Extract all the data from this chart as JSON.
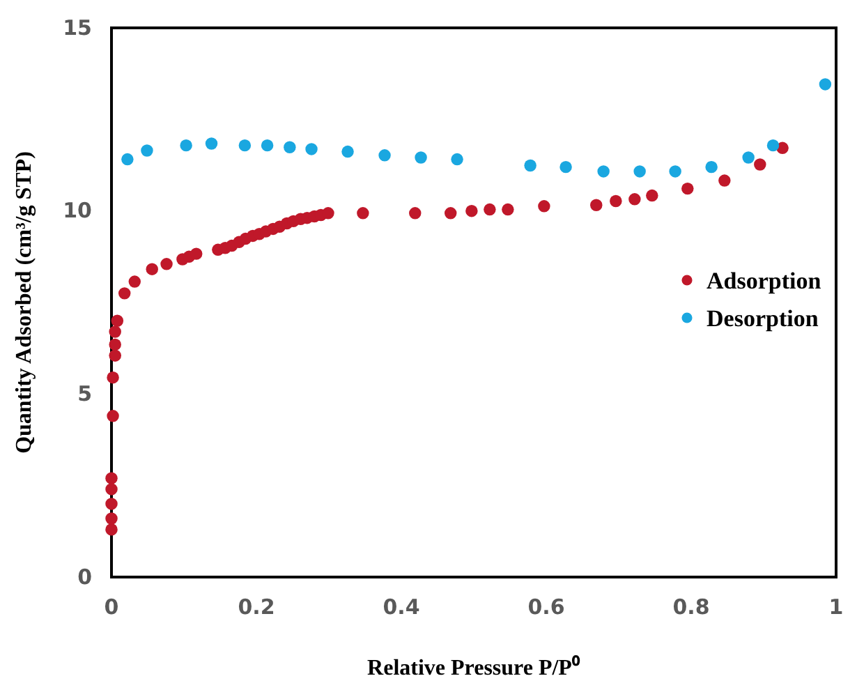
{
  "chart_data": {
    "type": "scatter",
    "xlabel": "Relative Pressure P/P⁰",
    "ylabel": "Quantity Adsorbed (cm³/g STP)",
    "xlim": [
      0,
      1
    ],
    "ylim": [
      0,
      15
    ],
    "xticks": [
      0,
      0.2,
      0.4,
      0.6,
      0.8,
      1
    ],
    "yticks": [
      0,
      5,
      10,
      15
    ],
    "grid": false,
    "legend": "right",
    "marker": "circle",
    "series": [
      {
        "name": "Adsorption",
        "color": "#c0182a",
        "x": [
          0,
          0,
          0,
          0,
          0,
          0.002,
          0.002,
          0.005,
          0.005,
          0.005,
          0.008,
          0.018,
          0.032,
          0.056,
          0.076,
          0.098,
          0.107,
          0.117,
          0.147,
          0.157,
          0.166,
          0.176,
          0.185,
          0.195,
          0.204,
          0.213,
          0.223,
          0.232,
          0.242,
          0.251,
          0.261,
          0.27,
          0.28,
          0.289,
          0.299,
          0.347,
          0.419,
          0.468,
          0.497,
          0.522,
          0.547,
          0.597,
          0.669,
          0.696,
          0.722,
          0.746,
          0.795,
          0.846,
          0.895,
          0.926
        ],
        "values": [
          1.3,
          1.6,
          2.0,
          2.4,
          2.7,
          4.4,
          5.45,
          6.05,
          6.35,
          6.7,
          7.0,
          7.75,
          8.07,
          8.41,
          8.55,
          8.68,
          8.75,
          8.83,
          8.94,
          8.99,
          9.05,
          9.15,
          9.24,
          9.32,
          9.37,
          9.44,
          9.51,
          9.57,
          9.66,
          9.72,
          9.78,
          9.81,
          9.85,
          9.89,
          9.94,
          9.94,
          9.94,
          9.94,
          10.0,
          10.04,
          10.04,
          10.13,
          10.16,
          10.27,
          10.32,
          10.42,
          10.61,
          10.83,
          11.27,
          11.72
        ]
      },
      {
        "name": "Desorption",
        "color": "#1aa7e0",
        "x": [
          0.022,
          0.049,
          0.103,
          0.138,
          0.184,
          0.215,
          0.246,
          0.276,
          0.326,
          0.377,
          0.427,
          0.477,
          0.578,
          0.627,
          0.679,
          0.729,
          0.778,
          0.828,
          0.879,
          0.913,
          0.985
        ],
        "values": [
          11.41,
          11.65,
          11.79,
          11.84,
          11.79,
          11.79,
          11.74,
          11.69,
          11.62,
          11.52,
          11.46,
          11.41,
          11.24,
          11.2,
          11.08,
          11.08,
          11.08,
          11.2,
          11.46,
          11.79,
          13.46
        ]
      }
    ]
  }
}
